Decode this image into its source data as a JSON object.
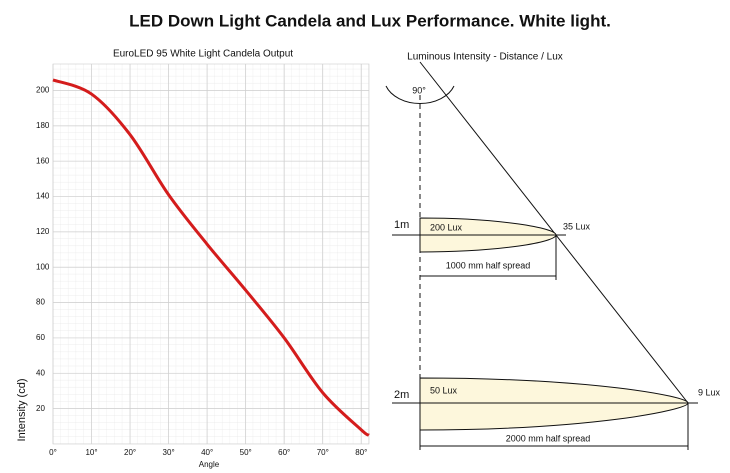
{
  "title": "LED Down Light Candela and Lux Performance. White light.",
  "chart_data": {
    "type": "line",
    "title": "EuroLED 95 White Light Candela Output",
    "x_label": "Angle",
    "y_label": "Intensity (cd)",
    "x": [
      0,
      10,
      20,
      30,
      40,
      50,
      60,
      70,
      80,
      82
    ],
    "series": [
      {
        "name": "Candela",
        "color": "#d41c1c",
        "values": [
          206,
          198,
          175,
          141,
          113,
          87,
          60,
          29,
          8,
          5
        ]
      }
    ],
    "xlim": [
      0,
      82
    ],
    "ylim": [
      0,
      215
    ],
    "xticks": [
      {
        "value": 0,
        "label": "0°"
      },
      {
        "value": 10,
        "label": "10°"
      },
      {
        "value": 20,
        "label": "20°"
      },
      {
        "value": 30,
        "label": "30°"
      },
      {
        "value": 40,
        "label": "40°"
      },
      {
        "value": 50,
        "label": "50°"
      },
      {
        "value": 60,
        "label": "60°"
      },
      {
        "value": 70,
        "label": "70°"
      },
      {
        "value": 80,
        "label": "80°"
      }
    ],
    "yticks": [
      20,
      40,
      60,
      80,
      100,
      120,
      140,
      160,
      180,
      200
    ],
    "grid": true
  },
  "diagram": {
    "title": "Luminous Intensity - Distance / Lux",
    "angle": "90°",
    "levels": [
      {
        "distance": "1m",
        "center_lux": "200 Lux",
        "edge_lux": "35 Lux",
        "spread": "1000 mm half spread"
      },
      {
        "distance": "2m",
        "center_lux": "50 Lux",
        "edge_lux": "9 Lux",
        "spread": "2000 mm half spread"
      }
    ]
  }
}
